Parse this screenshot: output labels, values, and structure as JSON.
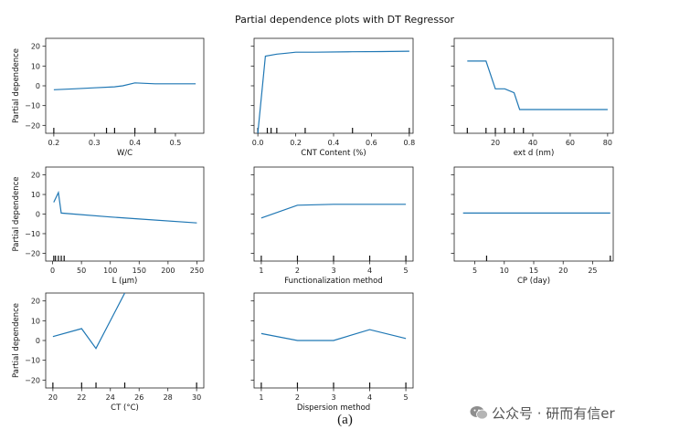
{
  "figure": {
    "suptitle": "Partial dependence plots with DT Regressor",
    "caption": "(a)",
    "watermark": "公众号 · 研而有信er",
    "line_color": "#1f77b4"
  },
  "chart_data": [
    {
      "type": "line",
      "xlabel": "W/C",
      "ylabel": "Partial dependence",
      "xlim": [
        0.18,
        0.57
      ],
      "ylim": [
        -24,
        24
      ],
      "xticks": [
        0.2,
        0.3,
        0.4,
        0.5
      ],
      "xticklabels": [
        "0.2",
        "0.3",
        "0.4",
        "0.5"
      ],
      "yticks": [
        -20,
        -10,
        0,
        10,
        20
      ],
      "yticklabels": [
        "−20",
        "−10",
        "0",
        "10",
        "20"
      ],
      "x": [
        0.2,
        0.25,
        0.3,
        0.35,
        0.37,
        0.4,
        0.45,
        0.55
      ],
      "y": [
        -2,
        -1.5,
        -1,
        -0.5,
        0,
        1.5,
        1,
        1
      ],
      "rug": [
        0.2,
        0.33,
        0.35,
        0.4,
        0.45
      ]
    },
    {
      "type": "line",
      "xlabel": "CNT Content (%)",
      "ylabel": "",
      "xlim": [
        -0.02,
        0.82
      ],
      "ylim": [
        -24,
        24
      ],
      "xticks": [
        0.0,
        0.2,
        0.4,
        0.6,
        0.8
      ],
      "xticklabels": [
        "0.0",
        "0.2",
        "0.4",
        "0.6",
        "0.8"
      ],
      "yticks": [
        -20,
        -10,
        0,
        10,
        20
      ],
      "yticklabels": [],
      "x": [
        0.0,
        0.04,
        0.1,
        0.15,
        0.2,
        0.3,
        0.5,
        0.65,
        0.8
      ],
      "y": [
        -24,
        15,
        16,
        16.5,
        17,
        17,
        17.2,
        17.3,
        17.5
      ],
      "rug": [
        0.0,
        0.05,
        0.07,
        0.1,
        0.25,
        0.5,
        0.8
      ]
    },
    {
      "type": "line",
      "xlabel": "ext d (nm)",
      "ylabel": "",
      "xlim": [
        -2,
        83
      ],
      "ylim": [
        -24,
        24
      ],
      "xticks": [
        20,
        40,
        60,
        80
      ],
      "xticklabels": [
        "20",
        "40",
        "60",
        "80"
      ],
      "yticks": [
        -20,
        -10,
        0,
        10,
        20
      ],
      "yticklabels": [],
      "x": [
        5,
        15,
        20,
        25,
        30,
        33,
        35,
        80
      ],
      "y": [
        12.5,
        12.5,
        -1.5,
        -1.5,
        -3.5,
        -12,
        -12,
        -12
      ],
      "rug": [
        5,
        15,
        20,
        25,
        30,
        35
      ]
    },
    {
      "type": "line",
      "xlabel": "L (μm)",
      "ylabel": "Partial dependence",
      "xlim": [
        -12,
        262
      ],
      "ylim": [
        -24,
        24
      ],
      "xticks": [
        0,
        50,
        100,
        150,
        200,
        250
      ],
      "xticklabels": [
        "0",
        "50",
        "100",
        "150",
        "200",
        "250"
      ],
      "yticks": [
        -20,
        -10,
        0,
        10,
        20
      ],
      "yticklabels": [
        "−20",
        "−10",
        "0",
        "10",
        "20"
      ],
      "x": [
        2,
        10,
        15,
        100,
        150,
        250
      ],
      "y": [
        6,
        11,
        0.5,
        -1.5,
        -2.5,
        -4.5
      ],
      "rug": [
        2,
        5,
        10,
        15,
        20
      ]
    },
    {
      "type": "line",
      "xlabel": "Functionalization method",
      "ylabel": "",
      "xlim": [
        0.8,
        5.2
      ],
      "ylim": [
        -24,
        24
      ],
      "xticks": [
        1,
        2,
        3,
        4,
        5
      ],
      "xticklabels": [
        "1",
        "2",
        "3",
        "4",
        "5"
      ],
      "yticks": [
        -20,
        -10,
        0,
        10,
        20
      ],
      "yticklabels": [],
      "x": [
        1,
        2,
        3,
        4,
        5
      ],
      "y": [
        -2,
        4.5,
        5,
        5,
        5
      ],
      "rug": [
        1,
        2,
        3,
        4,
        5
      ]
    },
    {
      "type": "line",
      "xlabel": "CP (day)",
      "ylabel": "",
      "xlim": [
        1.5,
        28.5
      ],
      "ylim": [
        -24,
        24
      ],
      "xticks": [
        5,
        10,
        15,
        20,
        25
      ],
      "xticklabels": [
        "5",
        "10",
        "15",
        "20",
        "25"
      ],
      "yticks": [
        -20,
        -10,
        0,
        10,
        20
      ],
      "yticklabels": [],
      "x": [
        3,
        28
      ],
      "y": [
        0.5,
        0.5
      ],
      "rug": [
        7,
        28
      ]
    },
    {
      "type": "line",
      "xlabel": "CT (°C)",
      "ylabel": "Partial dependence",
      "xlim": [
        19.5,
        30.5
      ],
      "ylim": [
        -24,
        24
      ],
      "xticks": [
        20,
        22,
        24,
        26,
        28,
        30
      ],
      "xticklabels": [
        "20",
        "22",
        "24",
        "26",
        "28",
        "30"
      ],
      "yticks": [
        -20,
        -10,
        0,
        10,
        20
      ],
      "yticklabels": [
        "−20",
        "−10",
        "0",
        "10",
        "20"
      ],
      "x": [
        20,
        22,
        23,
        25
      ],
      "y": [
        2,
        6,
        -4,
        24
      ],
      "rug": [
        20,
        22,
        23,
        25,
        30
      ]
    },
    {
      "type": "line",
      "xlabel": "Dispersion method",
      "ylabel": "",
      "xlim": [
        0.8,
        5.2
      ],
      "ylim": [
        -24,
        24
      ],
      "xticks": [
        1,
        2,
        3,
        4,
        5
      ],
      "xticklabels": [
        "1",
        "2",
        "3",
        "4",
        "5"
      ],
      "yticks": [
        -20,
        -10,
        0,
        10,
        20
      ],
      "yticklabels": [],
      "x": [
        1,
        2,
        3,
        4,
        5
      ],
      "y": [
        3.5,
        0,
        0,
        5.5,
        1
      ],
      "rug": [
        1,
        2,
        3,
        4,
        5
      ]
    }
  ]
}
